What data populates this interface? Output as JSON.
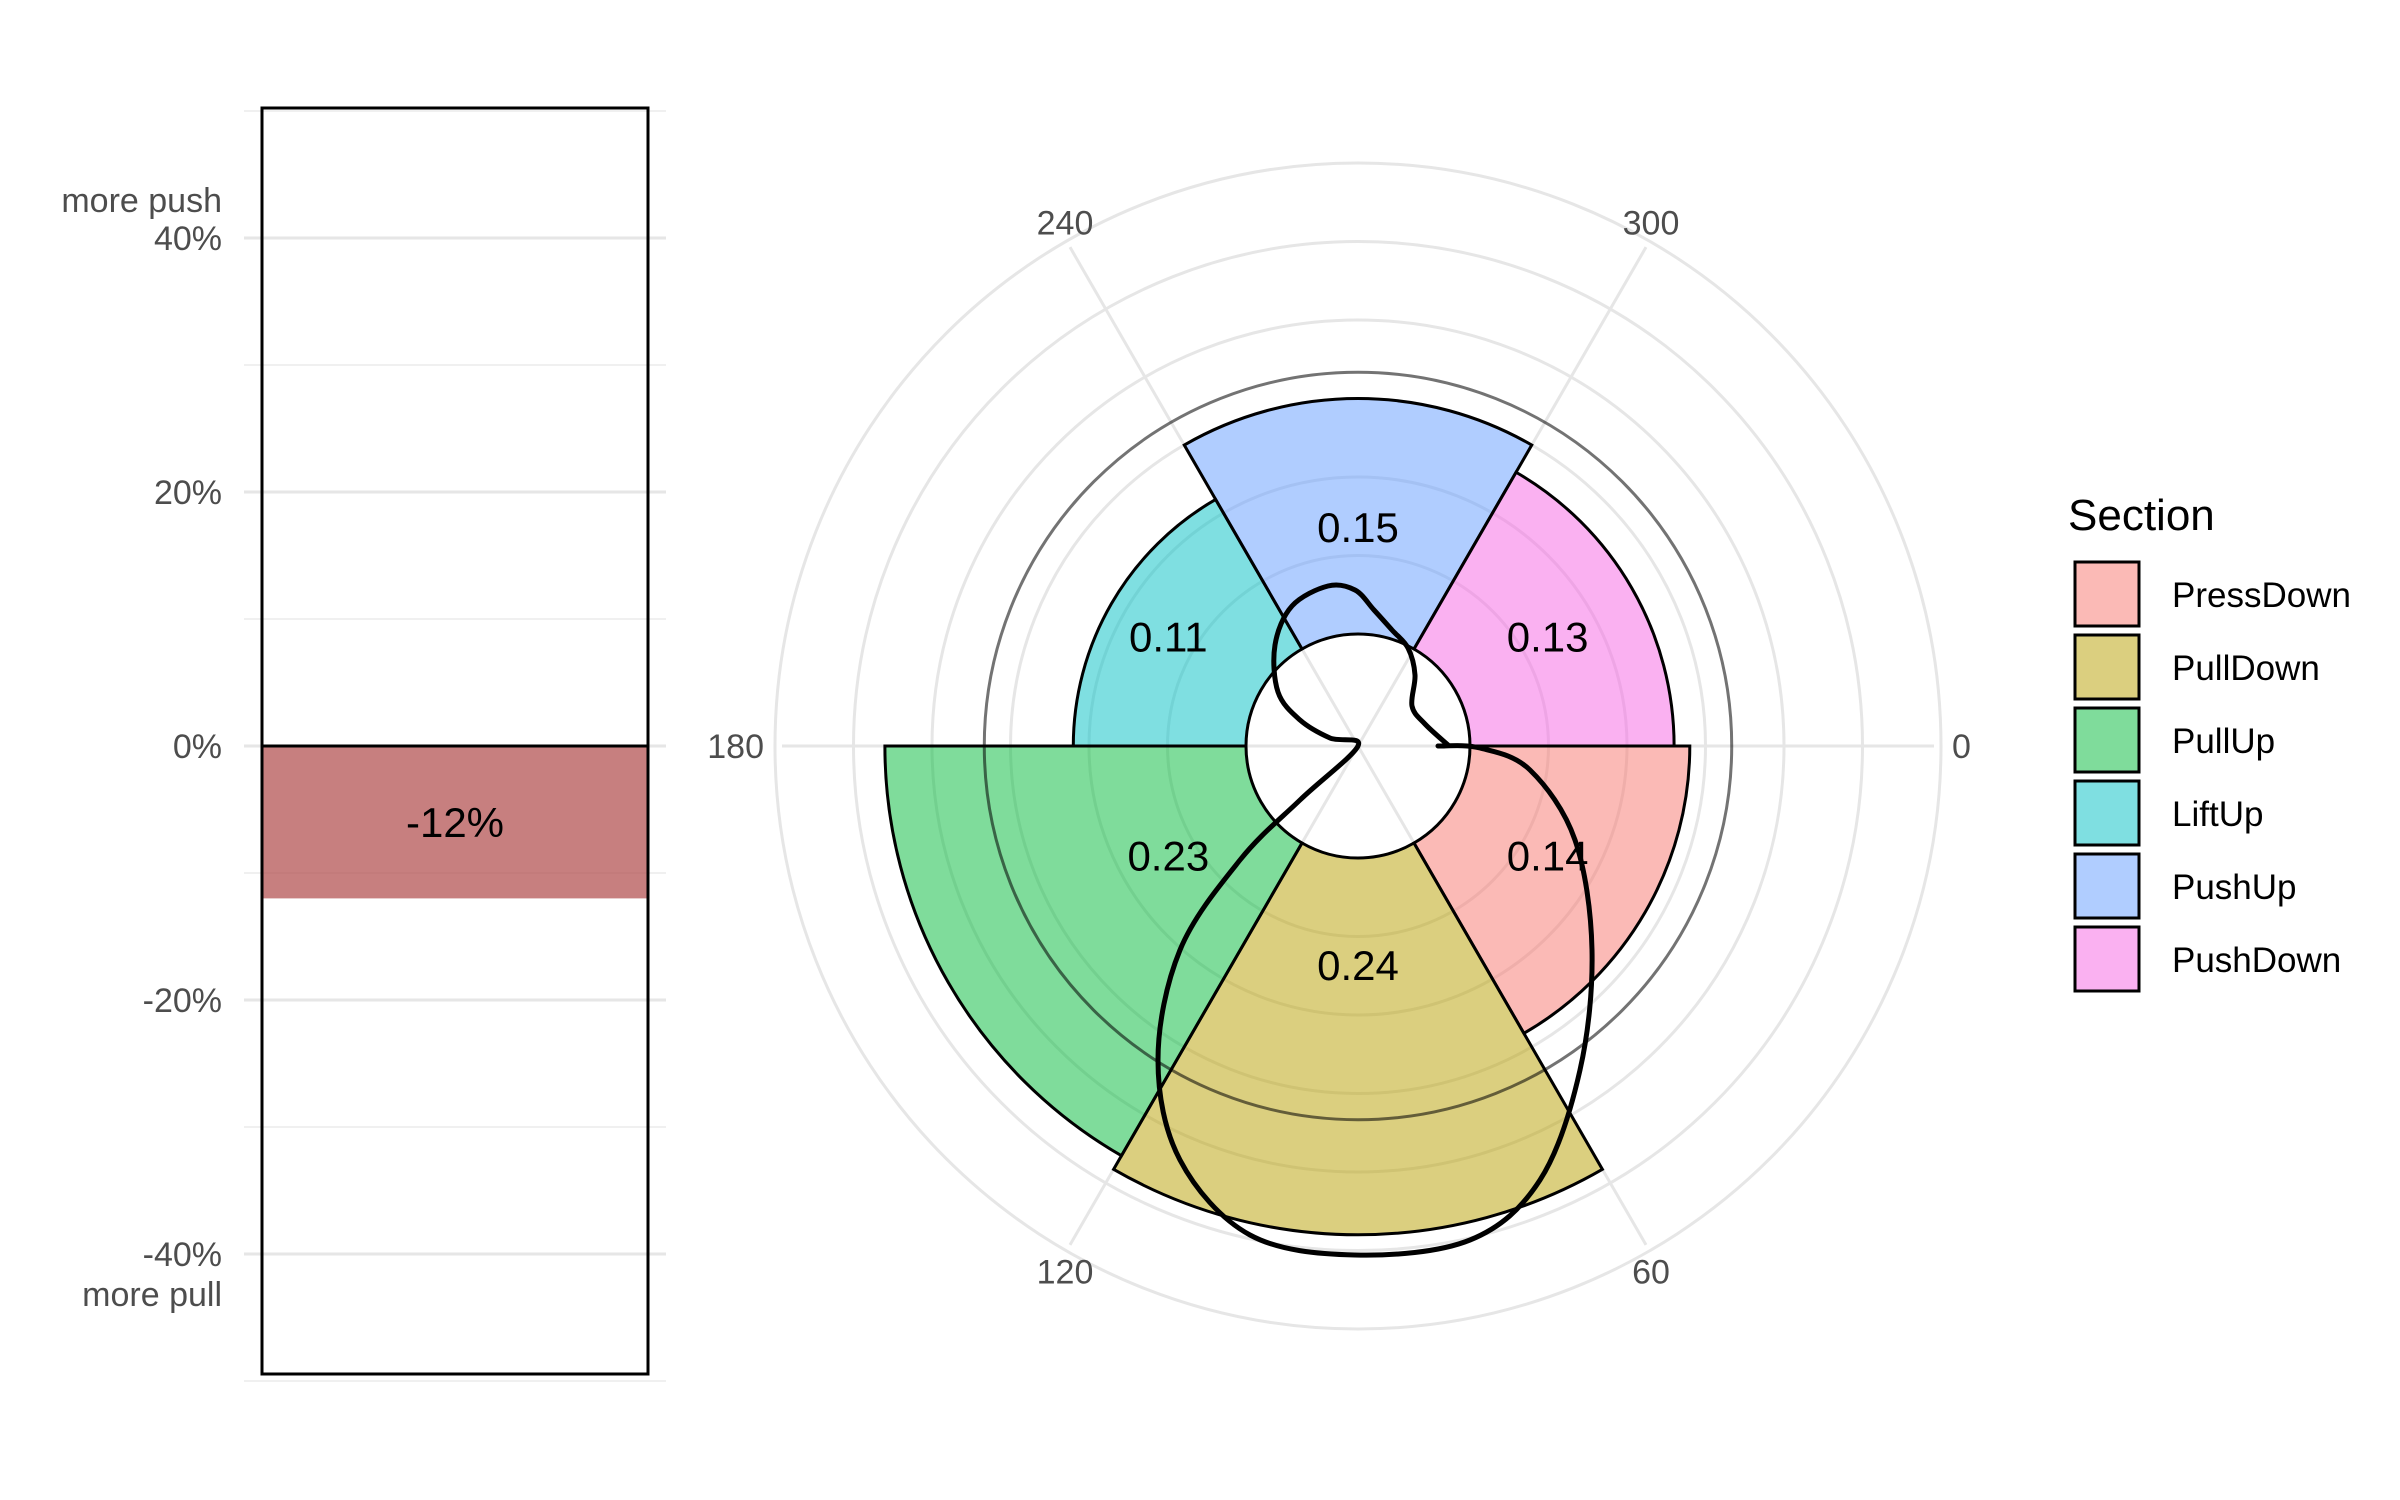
{
  "chart_data": [
    {
      "type": "bar",
      "categories": [
        ""
      ],
      "values": [
        -12
      ],
      "value_label": "-12%",
      "ylim": [
        -50,
        50
      ],
      "grid": true,
      "y_ticks": [
        {
          "value": 40,
          "label": "40%"
        },
        {
          "value": 20,
          "label": "20%"
        },
        {
          "value": 0,
          "label": "0%"
        },
        {
          "value": -20,
          "label": "-20%"
        },
        {
          "value": -40,
          "label": "-40%"
        }
      ],
      "annotations": {
        "top": "more push",
        "bottom": "more pull"
      },
      "bar_color": "#b24d4d"
    },
    {
      "type": "polar-bar",
      "angle_ticks": [
        "0",
        "60",
        "120",
        "180",
        "240",
        "300"
      ],
      "angle_tick_values": [
        0,
        60,
        120,
        180,
        240,
        300
      ],
      "grid": true,
      "series": [
        {
          "name": "PressDown",
          "value": 0.14,
          "label": "0.14",
          "color": "#F8766D"
        },
        {
          "name": "PullDown",
          "value": 0.24,
          "label": "0.24",
          "color": "#B79F00"
        },
        {
          "name": "PullUp",
          "value": 0.23,
          "label": "0.23",
          "color": "#00BA38"
        },
        {
          "name": "LiftUp",
          "value": 0.11,
          "label": "0.11",
          "color": "#00BFC4"
        },
        {
          "name": "PushUp",
          "value": 0.15,
          "label": "0.15",
          "color": "#619CFF"
        },
        {
          "name": "PushDown",
          "value": 0.13,
          "label": "0.13",
          "color": "#F564E3"
        }
      ],
      "reference_circle": 0.1667,
      "legend": {
        "title": "Section",
        "position": "right"
      }
    }
  ]
}
